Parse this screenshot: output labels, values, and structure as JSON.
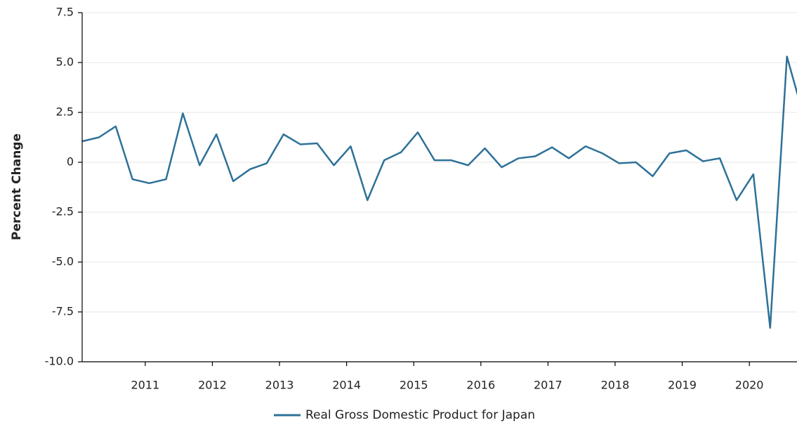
{
  "chart_data": {
    "type": "line",
    "ylabel": "Percent Change",
    "x": [
      2010.06,
      2010.31,
      2010.56,
      2010.81,
      2011.06,
      2011.31,
      2011.56,
      2011.81,
      2012.06,
      2012.31,
      2012.56,
      2012.81,
      2013.06,
      2013.31,
      2013.56,
      2013.81,
      2014.06,
      2014.31,
      2014.56,
      2014.81,
      2015.06,
      2015.31,
      2015.56,
      2015.81,
      2016.06,
      2016.31,
      2016.56,
      2016.81,
      2017.06,
      2017.31,
      2017.56,
      2017.81,
      2018.06,
      2018.31,
      2018.56,
      2018.81,
      2019.06,
      2019.31,
      2019.56,
      2019.81,
      2020.06,
      2020.31,
      2020.56,
      2020.81
    ],
    "series": [
      {
        "name": "Real Gross Domestic Product for Japan",
        "color": "#2e7198",
        "values": [
          1.05,
          1.25,
          1.8,
          -0.85,
          -1.05,
          -0.85,
          2.45,
          -0.15,
          1.4,
          -0.95,
          -0.35,
          -0.05,
          1.4,
          0.9,
          0.95,
          -0.15,
          0.8,
          -1.9,
          0.1,
          0.5,
          1.5,
          0.1,
          0.1,
          -0.15,
          0.7,
          -0.25,
          0.2,
          0.3,
          0.75,
          0.2,
          0.8,
          0.45,
          -0.05,
          0.0,
          -0.7,
          0.45,
          0.6,
          0.05,
          0.2,
          -1.9,
          -0.6,
          -8.3,
          5.3,
          2.3
        ]
      }
    ],
    "xlim": [
      2010.06,
      2020.71
    ],
    "xticks": [
      2011,
      2012,
      2013,
      2014,
      2015,
      2016,
      2017,
      2018,
      2019,
      2020
    ],
    "ylim": [
      -10,
      7.5
    ],
    "yticks": [
      {
        "value": -10,
        "label": "-10.0"
      },
      -7.5,
      {
        "value": -5,
        "label": "-5.0"
      },
      -2.5,
      0,
      2.5,
      {
        "value": 5,
        "label": "5.0"
      },
      7.5
    ],
    "grid": true,
    "legend": "bottom"
  }
}
